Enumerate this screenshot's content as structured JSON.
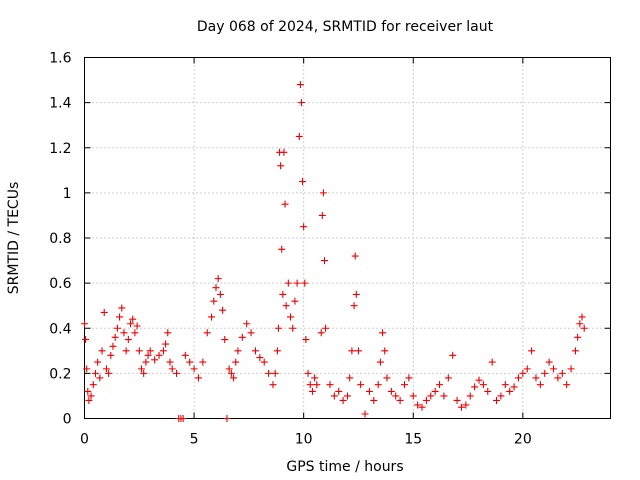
{
  "chart_data": {
    "type": "scatter",
    "title": "Day 068 of 2024, SRMTID for receiver laut",
    "xlabel": "GPS time / hours",
    "ylabel": "SRMTID / TECUs",
    "xlim": [
      0,
      24
    ],
    "ylim": [
      0,
      1.6
    ],
    "x_ticks": [
      0,
      5,
      10,
      15,
      20
    ],
    "x_tick_labels": [
      "0",
      "5",
      "10",
      "15",
      "20"
    ],
    "y_ticks": [
      0,
      0.2,
      0.4,
      0.6,
      0.8,
      1,
      1.2,
      1.4,
      1.6
    ],
    "y_tick_labels": [
      "0",
      "0.2",
      "0.4",
      "0.6",
      "0.8",
      "1",
      "1.2",
      "1.4",
      "1.6"
    ],
    "grid": true,
    "marker": "+",
    "series": [
      {
        "name": "SRMTID",
        "color": "#ee0000",
        "points": [
          [
            0.0,
            0.42
          ],
          [
            0.05,
            0.35
          ],
          [
            0.1,
            0.22
          ],
          [
            0.15,
            0.12
          ],
          [
            0.2,
            0.08
          ],
          [
            0.3,
            0.1
          ],
          [
            0.4,
            0.15
          ],
          [
            0.5,
            0.2
          ],
          [
            0.6,
            0.25
          ],
          [
            0.7,
            0.18
          ],
          [
            0.8,
            0.3
          ],
          [
            0.9,
            0.47
          ],
          [
            1.0,
            0.22
          ],
          [
            1.1,
            0.2
          ],
          [
            1.2,
            0.28
          ],
          [
            1.3,
            0.32
          ],
          [
            1.4,
            0.36
          ],
          [
            1.5,
            0.4
          ],
          [
            1.6,
            0.45
          ],
          [
            1.7,
            0.49
          ],
          [
            1.8,
            0.38
          ],
          [
            1.9,
            0.3
          ],
          [
            2.0,
            0.35
          ],
          [
            2.1,
            0.42
          ],
          [
            2.2,
            0.44
          ],
          [
            2.3,
            0.38
          ],
          [
            2.4,
            0.41
          ],
          [
            2.5,
            0.3
          ],
          [
            2.6,
            0.22
          ],
          [
            2.7,
            0.2
          ],
          [
            2.8,
            0.25
          ],
          [
            2.9,
            0.28
          ],
          [
            3.0,
            0.3
          ],
          [
            3.2,
            0.26
          ],
          [
            3.4,
            0.28
          ],
          [
            3.6,
            0.3
          ],
          [
            3.7,
            0.33
          ],
          [
            3.8,
            0.38
          ],
          [
            3.9,
            0.25
          ],
          [
            4.0,
            0.22
          ],
          [
            4.2,
            0.2
          ],
          [
            4.3,
            0.0
          ],
          [
            4.4,
            0.0
          ],
          [
            4.5,
            0.0
          ],
          [
            4.6,
            0.28
          ],
          [
            4.8,
            0.25
          ],
          [
            5.0,
            0.22
          ],
          [
            5.2,
            0.18
          ],
          [
            5.4,
            0.25
          ],
          [
            5.6,
            0.38
          ],
          [
            5.8,
            0.45
          ],
          [
            5.9,
            0.52
          ],
          [
            6.0,
            0.58
          ],
          [
            6.1,
            0.62
          ],
          [
            6.2,
            0.55
          ],
          [
            6.3,
            0.48
          ],
          [
            6.4,
            0.35
          ],
          [
            6.5,
            0.0
          ],
          [
            6.6,
            0.22
          ],
          [
            6.7,
            0.2
          ],
          [
            6.8,
            0.18
          ],
          [
            6.9,
            0.25
          ],
          [
            7.0,
            0.3
          ],
          [
            7.2,
            0.36
          ],
          [
            7.4,
            0.42
          ],
          [
            7.6,
            0.38
          ],
          [
            7.8,
            0.3
          ],
          [
            8.0,
            0.27
          ],
          [
            8.2,
            0.25
          ],
          [
            8.4,
            0.2
          ],
          [
            8.6,
            0.15
          ],
          [
            8.7,
            0.2
          ],
          [
            8.8,
            0.3
          ],
          [
            8.85,
            0.4
          ],
          [
            8.9,
            1.18
          ],
          [
            8.95,
            1.12
          ],
          [
            9.0,
            0.75
          ],
          [
            9.05,
            0.55
          ],
          [
            9.1,
            1.18
          ],
          [
            9.15,
            0.95
          ],
          [
            9.2,
            0.5
          ],
          [
            9.3,
            0.6
          ],
          [
            9.4,
            0.45
          ],
          [
            9.5,
            0.4
          ],
          [
            9.6,
            0.52
          ],
          [
            9.7,
            0.6
          ],
          [
            9.8,
            1.25
          ],
          [
            9.85,
            1.48
          ],
          [
            9.9,
            1.4
          ],
          [
            9.95,
            1.05
          ],
          [
            10.0,
            0.85
          ],
          [
            10.05,
            0.6
          ],
          [
            10.1,
            0.35
          ],
          [
            10.2,
            0.2
          ],
          [
            10.3,
            0.15
          ],
          [
            10.4,
            0.12
          ],
          [
            10.5,
            0.18
          ],
          [
            10.6,
            0.15
          ],
          [
            10.8,
            0.38
          ],
          [
            10.85,
            0.9
          ],
          [
            10.9,
            1.0
          ],
          [
            10.95,
            0.7
          ],
          [
            11.0,
            0.4
          ],
          [
            11.2,
            0.15
          ],
          [
            11.4,
            0.1
          ],
          [
            11.6,
            0.12
          ],
          [
            11.8,
            0.08
          ],
          [
            12.0,
            0.1
          ],
          [
            12.1,
            0.18
          ],
          [
            12.2,
            0.3
          ],
          [
            12.3,
            0.5
          ],
          [
            12.35,
            0.72
          ],
          [
            12.4,
            0.55
          ],
          [
            12.5,
            0.3
          ],
          [
            12.6,
            0.15
          ],
          [
            12.8,
            0.02
          ],
          [
            13.0,
            0.12
          ],
          [
            13.2,
            0.08
          ],
          [
            13.4,
            0.15
          ],
          [
            13.5,
            0.25
          ],
          [
            13.6,
            0.38
          ],
          [
            13.7,
            0.3
          ],
          [
            13.8,
            0.18
          ],
          [
            14.0,
            0.12
          ],
          [
            14.2,
            0.1
          ],
          [
            14.4,
            0.08
          ],
          [
            14.6,
            0.15
          ],
          [
            14.8,
            0.18
          ],
          [
            15.0,
            0.1
          ],
          [
            15.2,
            0.06
          ],
          [
            15.4,
            0.05
          ],
          [
            15.6,
            0.08
          ],
          [
            15.8,
            0.1
          ],
          [
            16.0,
            0.12
          ],
          [
            16.2,
            0.15
          ],
          [
            16.4,
            0.1
          ],
          [
            16.6,
            0.18
          ],
          [
            16.8,
            0.28
          ],
          [
            17.0,
            0.08
          ],
          [
            17.2,
            0.05
          ],
          [
            17.4,
            0.06
          ],
          [
            17.6,
            0.1
          ],
          [
            17.8,
            0.14
          ],
          [
            18.0,
            0.17
          ],
          [
            18.2,
            0.15
          ],
          [
            18.4,
            0.12
          ],
          [
            18.6,
            0.25
          ],
          [
            18.8,
            0.08
          ],
          [
            19.0,
            0.1
          ],
          [
            19.2,
            0.15
          ],
          [
            19.4,
            0.12
          ],
          [
            19.6,
            0.14
          ],
          [
            19.8,
            0.18
          ],
          [
            20.0,
            0.2
          ],
          [
            20.2,
            0.22
          ],
          [
            20.4,
            0.3
          ],
          [
            20.6,
            0.18
          ],
          [
            20.8,
            0.15
          ],
          [
            21.0,
            0.2
          ],
          [
            21.2,
            0.25
          ],
          [
            21.4,
            0.22
          ],
          [
            21.6,
            0.18
          ],
          [
            21.8,
            0.2
          ],
          [
            22.0,
            0.15
          ],
          [
            22.2,
            0.22
          ],
          [
            22.4,
            0.3
          ],
          [
            22.5,
            0.36
          ],
          [
            22.6,
            0.42
          ],
          [
            22.7,
            0.45
          ],
          [
            22.8,
            0.4
          ]
        ]
      }
    ]
  }
}
